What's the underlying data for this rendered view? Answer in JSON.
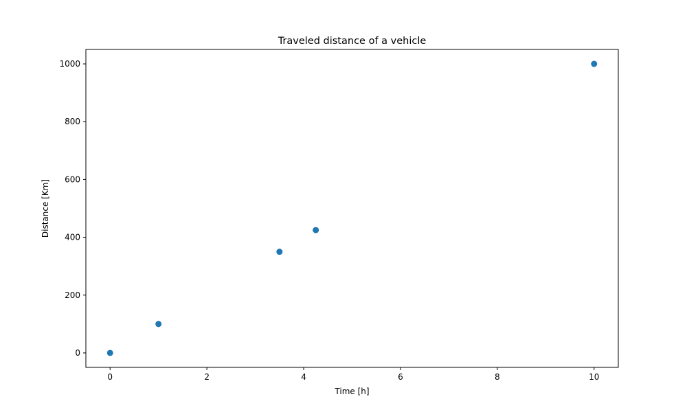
{
  "chart_data": {
    "type": "scatter",
    "title": "Traveled distance of a vehicle",
    "xlabel": "Time [h]",
    "ylabel": "Distance [Km]",
    "xlim": [
      -0.5,
      10.5
    ],
    "ylim": [
      -50,
      1050
    ],
    "xticks": [
      0,
      2,
      4,
      6,
      8,
      10
    ],
    "yticks": [
      0,
      200,
      400,
      600,
      800,
      1000
    ],
    "grid": false,
    "series": [
      {
        "color": "#1f77b4",
        "points": [
          {
            "x": 0,
            "y": 0
          },
          {
            "x": 1,
            "y": 100
          },
          {
            "x": 3.5,
            "y": 350
          },
          {
            "x": 4.25,
            "y": 425
          },
          {
            "x": 10,
            "y": 1000
          }
        ]
      }
    ]
  }
}
